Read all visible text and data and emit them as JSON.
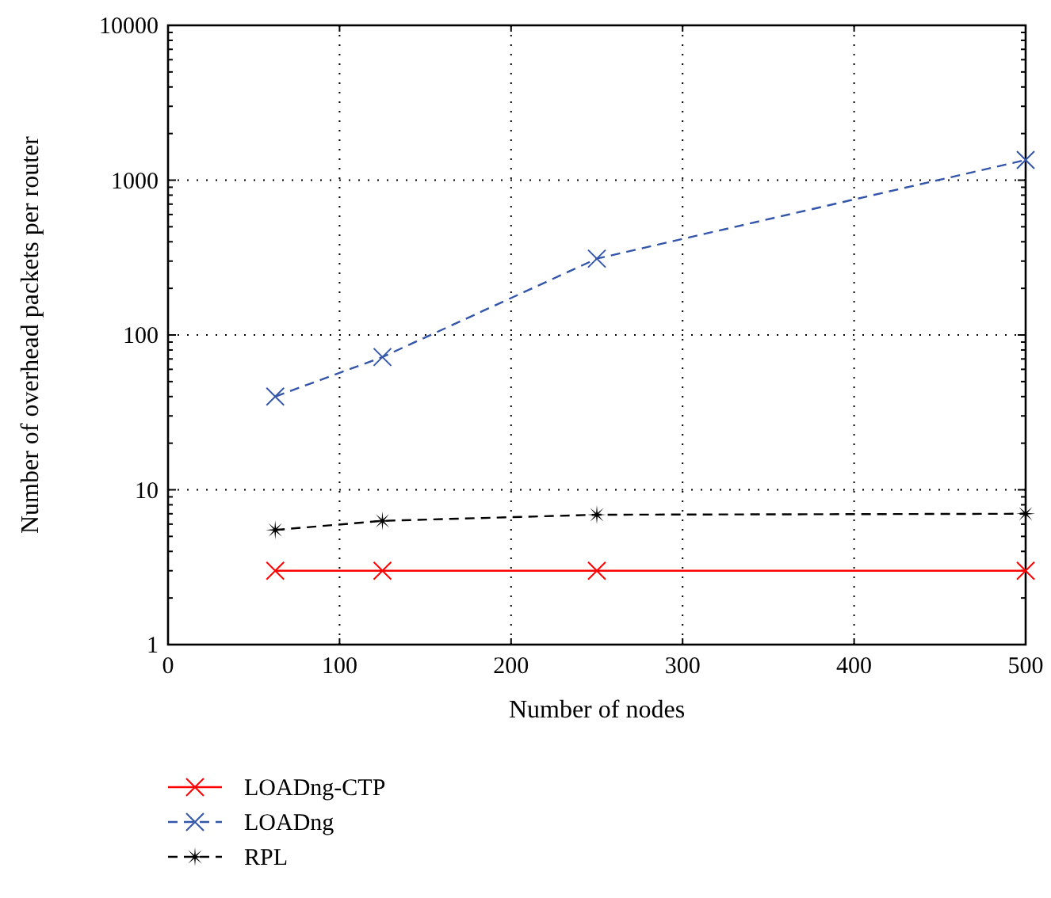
{
  "chart_data": {
    "type": "line",
    "xlabel": "Number of nodes",
    "ylabel": "Number of overhead packets per router",
    "log": "y",
    "xlim": [
      0,
      500
    ],
    "xticks": [
      0,
      100,
      200,
      300,
      400,
      500
    ],
    "ylim": [
      1,
      10000
    ],
    "yticks": [
      1,
      10,
      100,
      1000,
      10000
    ],
    "grid": true,
    "legend": "bottom left",
    "series": [
      {
        "name": "LOADng-CTP",
        "color": "#ff0000",
        "x": [
          62.5,
          125,
          250,
          500
        ],
        "values": [
          3.0,
          3.0,
          3.0,
          3.0
        ],
        "marker": "cross",
        "line_style": "solid"
      },
      {
        "name": "LOADng",
        "color": "#3355aa",
        "x": [
          62.5,
          125,
          250,
          500
        ],
        "values": [
          40,
          72,
          311,
          1350
        ],
        "marker": "cross",
        "line_style": "dashed"
      },
      {
        "name": "RPL",
        "color": "#000000",
        "x": [
          62.5,
          125,
          250,
          500
        ],
        "values": [
          5.5,
          6.3,
          6.9,
          7.0
        ],
        "marker": "star",
        "line_style": "dashed"
      }
    ]
  }
}
